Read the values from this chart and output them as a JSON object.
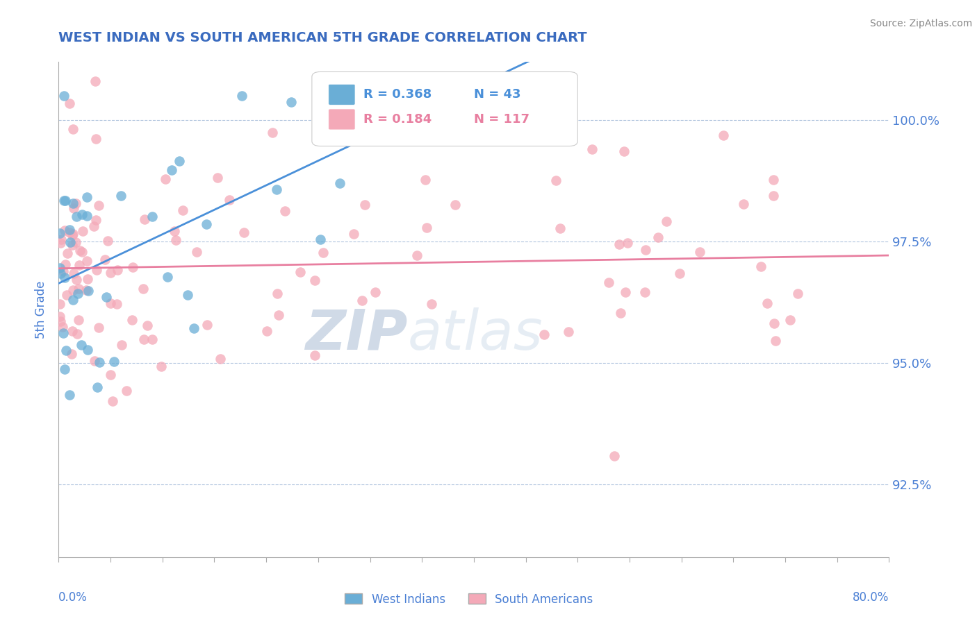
{
  "title": "WEST INDIAN VS SOUTH AMERICAN 5TH GRADE CORRELATION CHART",
  "source": "Source: ZipAtlas.com",
  "ylabel": "5th Grade",
  "yticks": [
    92.5,
    95.0,
    97.5,
    100.0
  ],
  "ytick_labels": [
    "92.5%",
    "95.0%",
    "97.5%",
    "100.0%"
  ],
  "xmin": 0.0,
  "xmax": 80.0,
  "ymin": 91.0,
  "ymax": 101.2,
  "legend_blue_r": "R = 0.368",
  "legend_blue_n": "N = 43",
  "legend_pink_r": "R = 0.184",
  "legend_pink_n": "N = 117",
  "blue_color": "#6aaed6",
  "pink_color": "#f4a9b8",
  "trend_blue_color": "#4a90d9",
  "trend_pink_color": "#e87fa0",
  "title_color": "#3a6bbf",
  "axis_color": "#4a7fd4",
  "watermark_zip": "ZIP",
  "watermark_atlas": "atlas"
}
